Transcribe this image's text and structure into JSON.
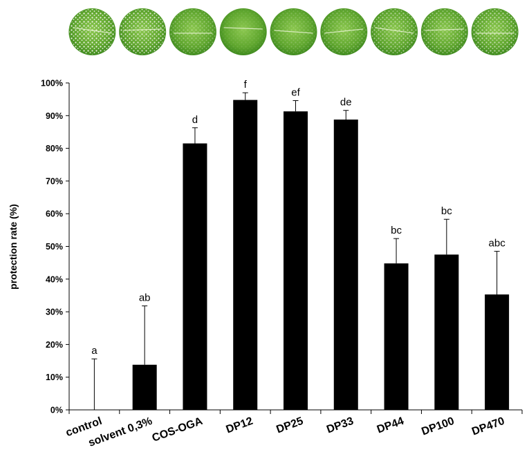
{
  "chart_data": {
    "type": "bar",
    "title": "",
    "xlabel": "",
    "ylabel": "protection rate (%)",
    "ylim": [
      0,
      100
    ],
    "yticks": [
      "0%",
      "10%",
      "20%",
      "30%",
      "40%",
      "50%",
      "60%",
      "70%",
      "80%",
      "90%",
      "100%"
    ],
    "grid": false,
    "legend": "none",
    "bar_color": "#000000",
    "categories": [
      "control",
      "solvent 0,3%",
      "COS-OGA",
      "DP12",
      "DP25",
      "DP33",
      "DP44",
      "DP100",
      "DP470"
    ],
    "values": [
      0,
      13.8,
      81.5,
      94.8,
      91.3,
      88.8,
      44.8,
      47.5,
      35.3
    ],
    "error_upper": [
      15.6,
      18,
      4.8,
      2.2,
      3.3,
      2.8,
      7.6,
      10.8,
      13.2
    ],
    "significance_letters": [
      "a",
      "ab",
      "d",
      "f",
      "ef",
      "de",
      "bc",
      "bc",
      "abc"
    ]
  }
}
